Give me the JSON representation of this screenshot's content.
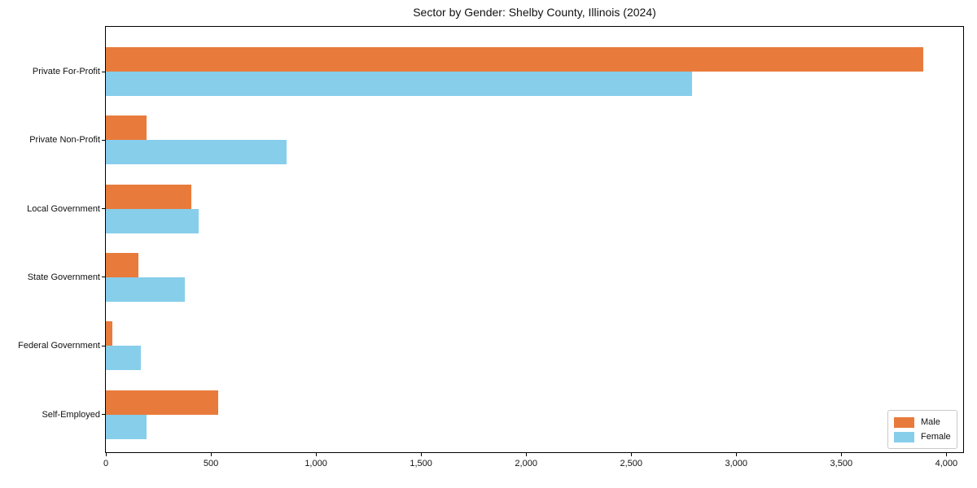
{
  "chart_data": {
    "type": "bar",
    "orientation": "horizontal",
    "title": "Sector by Gender: Shelby County, Illinois (2024)",
    "categories": [
      "Private For-Profit",
      "Private Non-Profit",
      "Local Government",
      "State Government",
      "Federal Government",
      "Self-Employed"
    ],
    "series": [
      {
        "name": "Male",
        "color": "#E87B3C",
        "values": [
          3890,
          195,
          405,
          155,
          30,
          535
        ]
      },
      {
        "name": "Female",
        "color": "#87CEEB",
        "values": [
          2790,
          860,
          440,
          375,
          168,
          195
        ]
      }
    ],
    "xlim": [
      0,
      4080
    ],
    "xticks": [
      0,
      500,
      1000,
      1500,
      2000,
      2500,
      3000,
      3500,
      4000
    ],
    "xtick_labels": [
      "0",
      "500",
      "1,000",
      "1,500",
      "2,000",
      "2,500",
      "3,000",
      "3,500",
      "4,000"
    ],
    "ylabel": "",
    "xlabel": "",
    "grid": false,
    "legend": {
      "position": "lower right",
      "entries": [
        "Male",
        "Female"
      ]
    }
  }
}
